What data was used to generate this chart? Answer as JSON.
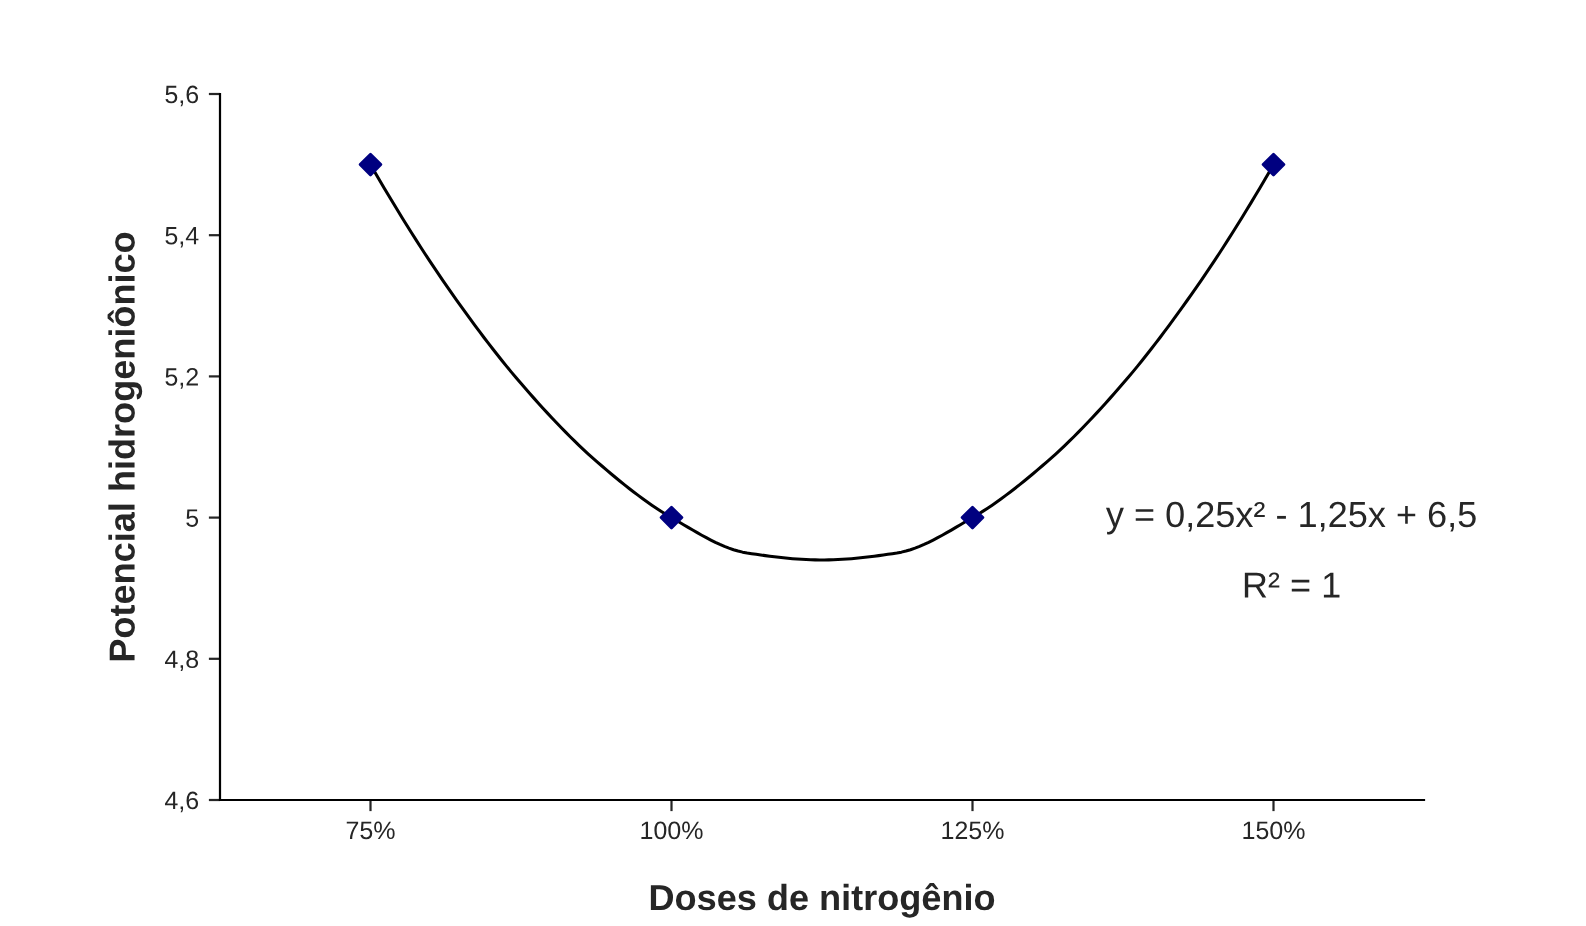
{
  "chart_data": {
    "type": "scatter",
    "xlabel": "Doses de nitrogênio",
    "ylabel": "Potencial hidrogeniônico",
    "xlim": [
      62.5,
      162.5
    ],
    "xticks": [
      {
        "value": 75,
        "label": "75%"
      },
      {
        "value": 100,
        "label": "100%"
      },
      {
        "value": 125,
        "label": "125%"
      },
      {
        "value": 150,
        "label": "150%"
      }
    ],
    "ylim": [
      4.6,
      5.6
    ],
    "yticks": [
      {
        "value": 4.6,
        "label": "4,6"
      },
      {
        "value": 4.8,
        "label": "4,8"
      },
      {
        "value": 5,
        "label": "5"
      },
      {
        "value": 5.2,
        "label": "5,2"
      },
      {
        "value": 5.4,
        "label": "5,4"
      },
      {
        "value": 5.6,
        "label": "5,6"
      }
    ],
    "grid": false,
    "legend": false,
    "marker": "diamond",
    "series": [
      {
        "color": "#000080",
        "x": [
          75,
          100,
          125,
          150
        ],
        "values": [
          5.5,
          5,
          5,
          5.5
        ]
      },
      {
        "type": "line",
        "color": "#000000",
        "marker": "none",
        "line_style": "solid",
        "x": [
          75,
          81.25,
          87.5,
          93.75,
          100,
          106.25,
          112.5,
          118.75,
          125,
          131.25,
          137.5,
          143.75,
          150
        ],
        "values": [
          5.5,
          5.33,
          5.19,
          5.08,
          5,
          4.95,
          4.94,
          4.95,
          5,
          5.08,
          5.19,
          5.33,
          5.5
        ]
      }
    ],
    "annotations": [
      "y = 0,25x² - 1,25x + 6,5",
      "R² = 1"
    ]
  }
}
